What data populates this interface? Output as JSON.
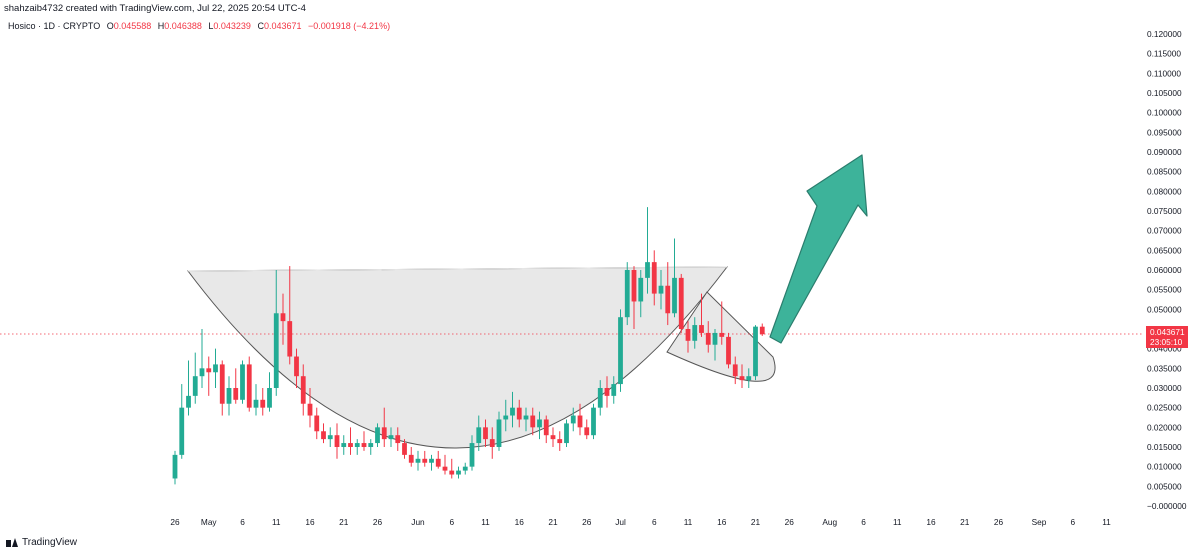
{
  "header": {
    "attribution": "shahzaib4732 created with TradingView.com, Jul 22, 2025 20:54 UTC-4"
  },
  "legend": {
    "symbol": "Hosico · 1D · CRYPTO",
    "open_label": "O",
    "open": "0.045588",
    "high_label": "H",
    "high": "0.046388",
    "low_label": "L",
    "low": "0.043239",
    "close_label": "C",
    "close": "0.043671",
    "change": "−0.001918 (−4.21%)"
  },
  "price_label": {
    "price": "0.043671",
    "countdown": "23:05:10"
  },
  "footer": {
    "brand": "TradingView"
  },
  "colors": {
    "up": "#22ab94",
    "down": "#f23645",
    "pattern_fill": "#e6e6e6",
    "arrow": "#3db39a"
  },
  "chart_data": {
    "type": "candlestick",
    "y_axis": {
      "ticks": [
        "0.120000",
        "0.115000",
        "0.110000",
        "0.105000",
        "0.100000",
        "0.095000",
        "0.090000",
        "0.085000",
        "0.080000",
        "0.075000",
        "0.070000",
        "0.065000",
        "0.060000",
        "0.055000",
        "0.050000",
        "0.045000",
        "0.040000",
        "0.035000",
        "0.030000",
        "0.025000",
        "0.020000",
        "0.015000",
        "0.010000",
        "0.005000",
        "−0.000000"
      ],
      "range": [
        0,
        0.12
      ]
    },
    "x_axis": {
      "ticks": [
        {
          "label": "26",
          "day": 0
        },
        {
          "label": "May",
          "day": 5
        },
        {
          "label": "6",
          "day": 10
        },
        {
          "label": "11",
          "day": 15
        },
        {
          "label": "16",
          "day": 20
        },
        {
          "label": "21",
          "day": 25
        },
        {
          "label": "26",
          "day": 30
        },
        {
          "label": "Jun",
          "day": 36
        },
        {
          "label": "6",
          "day": 41
        },
        {
          "label": "11",
          "day": 46
        },
        {
          "label": "16",
          "day": 51
        },
        {
          "label": "21",
          "day": 56
        },
        {
          "label": "26",
          "day": 61
        },
        {
          "label": "Jul",
          "day": 66
        },
        {
          "label": "6",
          "day": 71
        },
        {
          "label": "11",
          "day": 76
        },
        {
          "label": "16",
          "day": 81
        },
        {
          "label": "21",
          "day": 86
        },
        {
          "label": "26",
          "day": 91
        },
        {
          "label": "Aug",
          "day": 97
        },
        {
          "label": "6",
          "day": 102
        },
        {
          "label": "11",
          "day": 107
        },
        {
          "label": "16",
          "day": 112
        },
        {
          "label": "21",
          "day": 117
        },
        {
          "label": "26",
          "day": 122
        },
        {
          "label": "Sep",
          "day": 128
        },
        {
          "label": "6",
          "day": 133
        },
        {
          "label": "11",
          "day": 138
        }
      ]
    },
    "candles": [
      {
        "day": 0,
        "o": 0.007,
        "h": 0.014,
        "l": 0.0055,
        "c": 0.013
      },
      {
        "day": 1,
        "o": 0.013,
        "h": 0.031,
        "l": 0.012,
        "c": 0.025
      },
      {
        "day": 2,
        "o": 0.025,
        "h": 0.037,
        "l": 0.023,
        "c": 0.028
      },
      {
        "day": 3,
        "o": 0.028,
        "h": 0.039,
        "l": 0.026,
        "c": 0.033
      },
      {
        "day": 4,
        "o": 0.033,
        "h": 0.045,
        "l": 0.03,
        "c": 0.035
      },
      {
        "day": 5,
        "o": 0.035,
        "h": 0.038,
        "l": 0.028,
        "c": 0.034
      },
      {
        "day": 6,
        "o": 0.034,
        "h": 0.04,
        "l": 0.03,
        "c": 0.036
      },
      {
        "day": 7,
        "o": 0.036,
        "h": 0.037,
        "l": 0.023,
        "c": 0.026
      },
      {
        "day": 8,
        "o": 0.026,
        "h": 0.033,
        "l": 0.023,
        "c": 0.03
      },
      {
        "day": 9,
        "o": 0.03,
        "h": 0.035,
        "l": 0.026,
        "c": 0.027
      },
      {
        "day": 10,
        "o": 0.027,
        "h": 0.037,
        "l": 0.026,
        "c": 0.036
      },
      {
        "day": 11,
        "o": 0.036,
        "h": 0.038,
        "l": 0.024,
        "c": 0.025
      },
      {
        "day": 12,
        "o": 0.025,
        "h": 0.031,
        "l": 0.023,
        "c": 0.027
      },
      {
        "day": 13,
        "o": 0.027,
        "h": 0.03,
        "l": 0.023,
        "c": 0.025
      },
      {
        "day": 14,
        "o": 0.025,
        "h": 0.034,
        "l": 0.024,
        "c": 0.03
      },
      {
        "day": 15,
        "o": 0.03,
        "h": 0.06,
        "l": 0.028,
        "c": 0.049
      },
      {
        "day": 16,
        "o": 0.049,
        "h": 0.054,
        "l": 0.041,
        "c": 0.047
      },
      {
        "day": 17,
        "o": 0.047,
        "h": 0.061,
        "l": 0.036,
        "c": 0.038
      },
      {
        "day": 18,
        "o": 0.038,
        "h": 0.04,
        "l": 0.03,
        "c": 0.033
      },
      {
        "day": 19,
        "o": 0.033,
        "h": 0.036,
        "l": 0.023,
        "c": 0.026
      },
      {
        "day": 20,
        "o": 0.026,
        "h": 0.03,
        "l": 0.02,
        "c": 0.023
      },
      {
        "day": 21,
        "o": 0.023,
        "h": 0.025,
        "l": 0.017,
        "c": 0.019
      },
      {
        "day": 22,
        "o": 0.019,
        "h": 0.021,
        "l": 0.016,
        "c": 0.017
      },
      {
        "day": 23,
        "o": 0.017,
        "h": 0.02,
        "l": 0.015,
        "c": 0.018
      },
      {
        "day": 24,
        "o": 0.018,
        "h": 0.021,
        "l": 0.012,
        "c": 0.015
      },
      {
        "day": 25,
        "o": 0.015,
        "h": 0.018,
        "l": 0.013,
        "c": 0.016
      },
      {
        "day": 26,
        "o": 0.016,
        "h": 0.02,
        "l": 0.013,
        "c": 0.015
      },
      {
        "day": 27,
        "o": 0.015,
        "h": 0.017,
        "l": 0.013,
        "c": 0.016
      },
      {
        "day": 28,
        "o": 0.016,
        "h": 0.019,
        "l": 0.014,
        "c": 0.015
      },
      {
        "day": 29,
        "o": 0.015,
        "h": 0.017,
        "l": 0.013,
        "c": 0.016
      },
      {
        "day": 30,
        "o": 0.016,
        "h": 0.021,
        "l": 0.015,
        "c": 0.02
      },
      {
        "day": 31,
        "o": 0.02,
        "h": 0.025,
        "l": 0.015,
        "c": 0.017
      },
      {
        "day": 32,
        "o": 0.017,
        "h": 0.02,
        "l": 0.015,
        "c": 0.018
      },
      {
        "day": 33,
        "o": 0.018,
        "h": 0.02,
        "l": 0.014,
        "c": 0.016
      },
      {
        "day": 34,
        "o": 0.016,
        "h": 0.017,
        "l": 0.012,
        "c": 0.013
      },
      {
        "day": 35,
        "o": 0.013,
        "h": 0.015,
        "l": 0.01,
        "c": 0.011
      },
      {
        "day": 36,
        "o": 0.011,
        "h": 0.014,
        "l": 0.009,
        "c": 0.012
      },
      {
        "day": 37,
        "o": 0.012,
        "h": 0.014,
        "l": 0.01,
        "c": 0.011
      },
      {
        "day": 38,
        "o": 0.011,
        "h": 0.013,
        "l": 0.009,
        "c": 0.012
      },
      {
        "day": 39,
        "o": 0.012,
        "h": 0.014,
        "l": 0.0095,
        "c": 0.01
      },
      {
        "day": 40,
        "o": 0.01,
        "h": 0.013,
        "l": 0.008,
        "c": 0.009
      },
      {
        "day": 41,
        "o": 0.009,
        "h": 0.012,
        "l": 0.007,
        "c": 0.008
      },
      {
        "day": 42,
        "o": 0.008,
        "h": 0.01,
        "l": 0.007,
        "c": 0.009
      },
      {
        "day": 43,
        "o": 0.009,
        "h": 0.011,
        "l": 0.008,
        "c": 0.01
      },
      {
        "day": 44,
        "o": 0.01,
        "h": 0.018,
        "l": 0.009,
        "c": 0.016
      },
      {
        "day": 45,
        "o": 0.016,
        "h": 0.023,
        "l": 0.014,
        "c": 0.02
      },
      {
        "day": 46,
        "o": 0.02,
        "h": 0.022,
        "l": 0.015,
        "c": 0.017
      },
      {
        "day": 47,
        "o": 0.017,
        "h": 0.02,
        "l": 0.012,
        "c": 0.015
      },
      {
        "day": 48,
        "o": 0.015,
        "h": 0.024,
        "l": 0.014,
        "c": 0.022
      },
      {
        "day": 49,
        "o": 0.022,
        "h": 0.027,
        "l": 0.019,
        "c": 0.023
      },
      {
        "day": 50,
        "o": 0.023,
        "h": 0.029,
        "l": 0.02,
        "c": 0.025
      },
      {
        "day": 51,
        "o": 0.025,
        "h": 0.027,
        "l": 0.02,
        "c": 0.022
      },
      {
        "day": 52,
        "o": 0.022,
        "h": 0.025,
        "l": 0.019,
        "c": 0.023
      },
      {
        "day": 53,
        "o": 0.023,
        "h": 0.025,
        "l": 0.018,
        "c": 0.02
      },
      {
        "day": 54,
        "o": 0.02,
        "h": 0.024,
        "l": 0.017,
        "c": 0.022
      },
      {
        "day": 55,
        "o": 0.022,
        "h": 0.023,
        "l": 0.016,
        "c": 0.018
      },
      {
        "day": 56,
        "o": 0.018,
        "h": 0.02,
        "l": 0.015,
        "c": 0.017
      },
      {
        "day": 57,
        "o": 0.017,
        "h": 0.019,
        "l": 0.014,
        "c": 0.016
      },
      {
        "day": 58,
        "o": 0.016,
        "h": 0.022,
        "l": 0.015,
        "c": 0.021
      },
      {
        "day": 59,
        "o": 0.021,
        "h": 0.025,
        "l": 0.019,
        "c": 0.023
      },
      {
        "day": 60,
        "o": 0.023,
        "h": 0.026,
        "l": 0.018,
        "c": 0.02
      },
      {
        "day": 61,
        "o": 0.02,
        "h": 0.022,
        "l": 0.017,
        "c": 0.018
      },
      {
        "day": 62,
        "o": 0.018,
        "h": 0.026,
        "l": 0.017,
        "c": 0.025
      },
      {
        "day": 63,
        "o": 0.025,
        "h": 0.032,
        "l": 0.023,
        "c": 0.03
      },
      {
        "day": 64,
        "o": 0.03,
        "h": 0.033,
        "l": 0.025,
        "c": 0.028
      },
      {
        "day": 65,
        "o": 0.028,
        "h": 0.033,
        "l": 0.026,
        "c": 0.031
      },
      {
        "day": 66,
        "o": 0.031,
        "h": 0.05,
        "l": 0.029,
        "c": 0.048
      },
      {
        "day": 67,
        "o": 0.048,
        "h": 0.062,
        "l": 0.046,
        "c": 0.06
      },
      {
        "day": 68,
        "o": 0.06,
        "h": 0.061,
        "l": 0.045,
        "c": 0.052
      },
      {
        "day": 69,
        "o": 0.052,
        "h": 0.06,
        "l": 0.048,
        "c": 0.058
      },
      {
        "day": 70,
        "o": 0.058,
        "h": 0.076,
        "l": 0.054,
        "c": 0.062
      },
      {
        "day": 71,
        "o": 0.062,
        "h": 0.065,
        "l": 0.051,
        "c": 0.054
      },
      {
        "day": 72,
        "o": 0.054,
        "h": 0.06,
        "l": 0.05,
        "c": 0.056
      },
      {
        "day": 73,
        "o": 0.056,
        "h": 0.062,
        "l": 0.046,
        "c": 0.049
      },
      {
        "day": 74,
        "o": 0.049,
        "h": 0.068,
        "l": 0.048,
        "c": 0.058
      },
      {
        "day": 75,
        "o": 0.058,
        "h": 0.059,
        "l": 0.044,
        "c": 0.045
      },
      {
        "day": 76,
        "o": 0.045,
        "h": 0.047,
        "l": 0.039,
        "c": 0.042
      },
      {
        "day": 77,
        "o": 0.042,
        "h": 0.048,
        "l": 0.04,
        "c": 0.046
      },
      {
        "day": 78,
        "o": 0.046,
        "h": 0.054,
        "l": 0.043,
        "c": 0.044
      },
      {
        "day": 79,
        "o": 0.044,
        "h": 0.047,
        "l": 0.039,
        "c": 0.041
      },
      {
        "day": 80,
        "o": 0.041,
        "h": 0.045,
        "l": 0.037,
        "c": 0.044
      },
      {
        "day": 81,
        "o": 0.044,
        "h": 0.052,
        "l": 0.041,
        "c": 0.043
      },
      {
        "day": 82,
        "o": 0.043,
        "h": 0.044,
        "l": 0.035,
        "c": 0.036
      },
      {
        "day": 83,
        "o": 0.036,
        "h": 0.038,
        "l": 0.031,
        "c": 0.033
      },
      {
        "day": 84,
        "o": 0.033,
        "h": 0.036,
        "l": 0.03,
        "c": 0.032
      },
      {
        "day": 85,
        "o": 0.032,
        "h": 0.035,
        "l": 0.03,
        "c": 0.033
      },
      {
        "day": 86,
        "o": 0.033,
        "h": 0.046,
        "l": 0.032,
        "c": 0.0456
      },
      {
        "day": 87,
        "o": 0.045588,
        "h": 0.046388,
        "l": 0.043239,
        "c": 0.043671
      }
    ],
    "last_price": 0.043671,
    "annotations": [
      "cup-and-handle pattern",
      "upward arrow"
    ]
  }
}
